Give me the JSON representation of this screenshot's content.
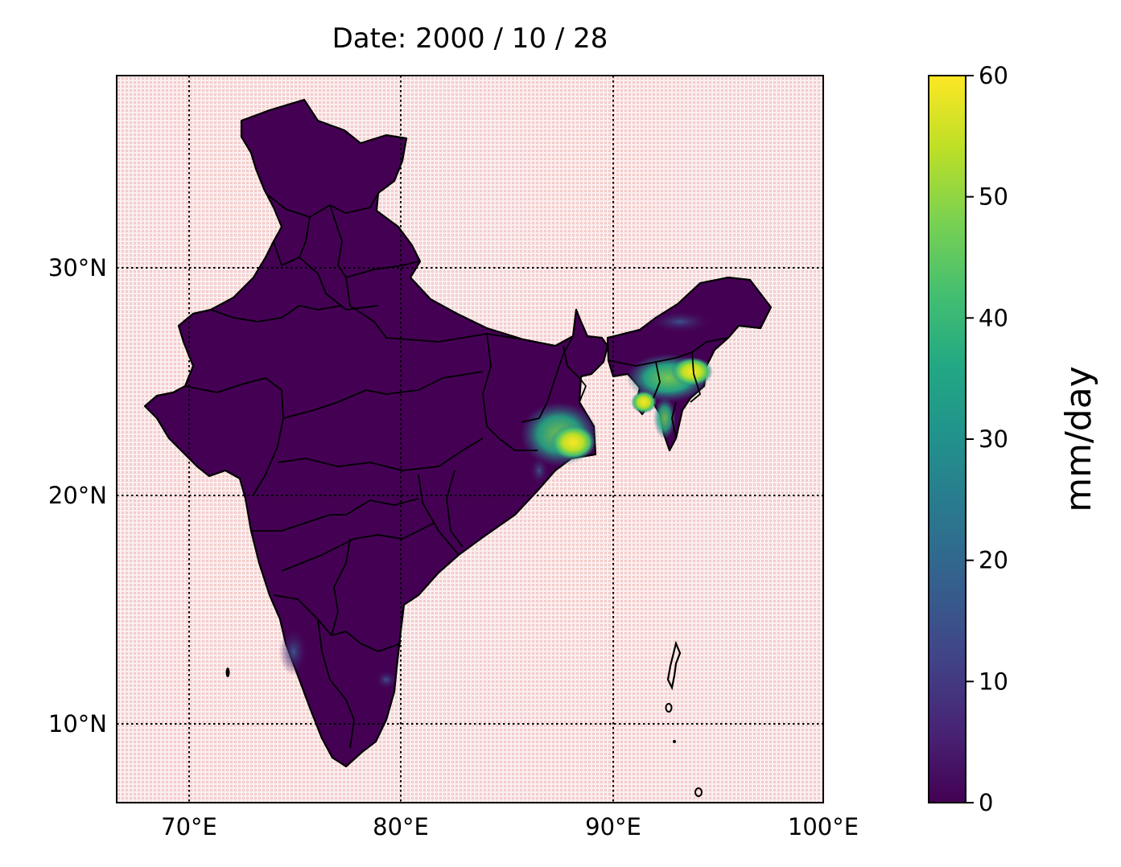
{
  "title": "Date: 2000 / 10 / 28",
  "map": {
    "region": "India",
    "extent": {
      "lon": [
        66.5,
        100
      ],
      "lat": [
        6.3,
        38.2
      ]
    },
    "grid": "dotted",
    "longitude_ticks": [
      "70°E",
      "80°E",
      "90°E",
      "100°E"
    ],
    "latitude_ticks": [
      "30°N",
      "20°N",
      "10°N"
    ],
    "ocean_color": "#f7dede",
    "land_dry_color": "#440154",
    "precip_hotspots": [
      {
        "name": "Kolkata / Ganges delta coast",
        "value_mm_day": 58
      },
      {
        "name": "Northeast India (Meghalaya / Assam)",
        "value_mm_day": 55
      },
      {
        "name": "Kerala coast",
        "value_mm_day": 12
      },
      {
        "name": "Odisha coast",
        "value_mm_day": 15
      }
    ]
  },
  "colorbar": {
    "label": "mm/day",
    "colormap": "viridis",
    "range": [
      0,
      60
    ],
    "ticks": [
      "0",
      "10",
      "20",
      "30",
      "40",
      "50",
      "60"
    ]
  }
}
